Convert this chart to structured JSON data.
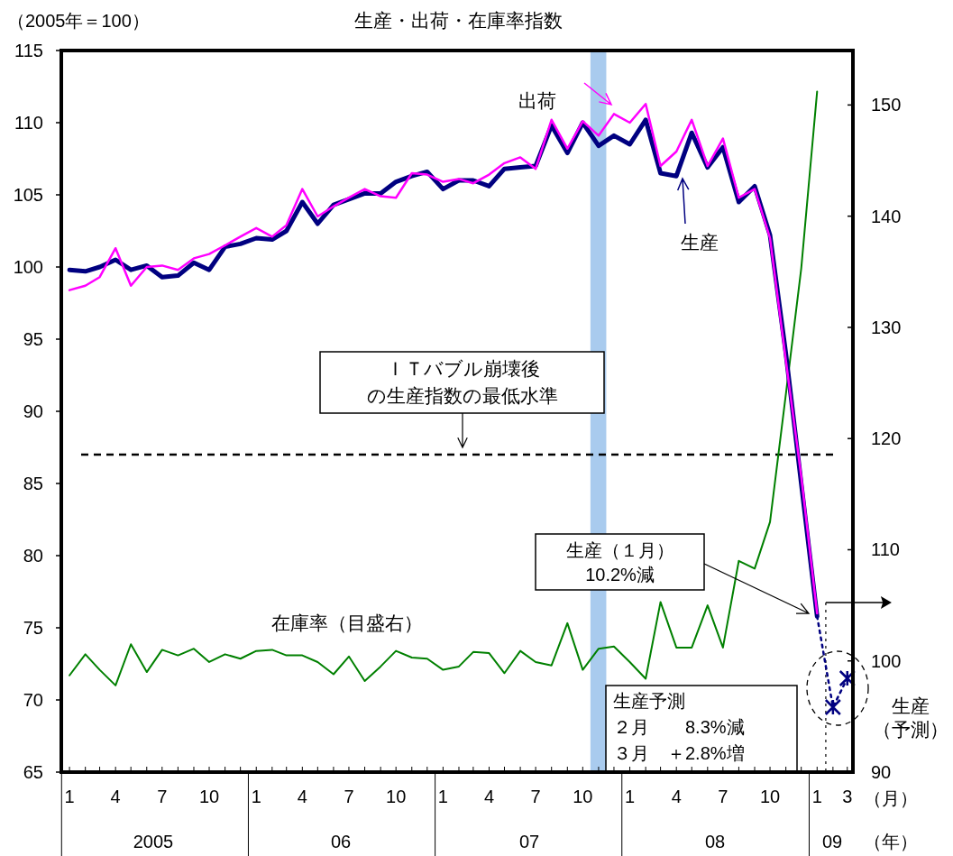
{
  "chart_data": {
    "type": "line",
    "title": "生産・出荷・在庫率指数",
    "ylabel": "（2005年＝100）",
    "xlabel": "（月）",
    "x": [
      "2005-01",
      "2005-02",
      "2005-03",
      "2005-04",
      "2005-05",
      "2005-06",
      "2005-07",
      "2005-08",
      "2005-09",
      "2005-10",
      "2005-11",
      "2005-12",
      "2006-01",
      "2006-02",
      "2006-03",
      "2006-04",
      "2006-05",
      "2006-06",
      "2006-07",
      "2006-08",
      "2006-09",
      "2006-10",
      "2006-11",
      "2006-12",
      "2007-01",
      "2007-02",
      "2007-03",
      "2007-04",
      "2007-05",
      "2007-06",
      "2007-07",
      "2007-08",
      "2007-09",
      "2007-10",
      "2007-11",
      "2007-12",
      "2008-01",
      "2008-02",
      "2008-03",
      "2008-04",
      "2008-05",
      "2008-06",
      "2008-07",
      "2008-08",
      "2008-09",
      "2008-10",
      "2008-11",
      "2008-12",
      "2009-01"
    ],
    "xlim": [
      "2004-12-16",
      "2009-03-12"
    ],
    "xticks": [
      {
        "value": "2005-01",
        "label": "1"
      },
      {
        "value": "2005-02",
        "label": null
      },
      {
        "value": "2005-03",
        "label": null
      },
      {
        "value": "2005-04",
        "label": "4"
      },
      {
        "value": "2005-05",
        "label": null
      },
      {
        "value": "2005-06",
        "label": null
      },
      {
        "value": "2005-07",
        "label": "7"
      },
      {
        "value": "2005-08",
        "label": null
      },
      {
        "value": "2005-09",
        "label": null
      },
      {
        "value": "2005-10",
        "label": "10"
      },
      {
        "value": "2005-11",
        "label": null
      },
      {
        "value": "2005-12",
        "label": null
      },
      {
        "value": "2006-01",
        "label": "1"
      },
      {
        "value": "2006-02",
        "label": null
      },
      {
        "value": "2006-03",
        "label": null
      },
      {
        "value": "2006-04",
        "label": "4"
      },
      {
        "value": "2006-05",
        "label": null
      },
      {
        "value": "2006-06",
        "label": null
      },
      {
        "value": "2006-07",
        "label": "7"
      },
      {
        "value": "2006-08",
        "label": null
      },
      {
        "value": "2006-09",
        "label": null
      },
      {
        "value": "2006-10",
        "label": "10"
      },
      {
        "value": "2006-11",
        "label": null
      },
      {
        "value": "2006-12",
        "label": null
      },
      {
        "value": "2007-01",
        "label": "1"
      },
      {
        "value": "2007-02",
        "label": null
      },
      {
        "value": "2007-03",
        "label": null
      },
      {
        "value": "2007-04",
        "label": "4"
      },
      {
        "value": "2007-05",
        "label": null
      },
      {
        "value": "2007-06",
        "label": null
      },
      {
        "value": "2007-07",
        "label": "7"
      },
      {
        "value": "2007-08",
        "label": null
      },
      {
        "value": "2007-09",
        "label": null
      },
      {
        "value": "2007-10",
        "label": "10"
      },
      {
        "value": "2007-11",
        "label": null
      },
      {
        "value": "2007-12",
        "label": null
      },
      {
        "value": "2008-01",
        "label": "1"
      },
      {
        "value": "2008-02",
        "label": null
      },
      {
        "value": "2008-03",
        "label": null
      },
      {
        "value": "2008-04",
        "label": "4"
      },
      {
        "value": "2008-05",
        "label": null
      },
      {
        "value": "2008-06",
        "label": null
      },
      {
        "value": "2008-07",
        "label": "7"
      },
      {
        "value": "2008-08",
        "label": null
      },
      {
        "value": "2008-09",
        "label": null
      },
      {
        "value": "2008-10",
        "label": "10"
      },
      {
        "value": "2008-11",
        "label": null
      },
      {
        "value": "2008-12",
        "label": null
      },
      {
        "value": "2009-01",
        "label": "1"
      },
      {
        "value": "2009-02",
        "label": null
      },
      {
        "value": "2009-03",
        "label": "3"
      }
    ],
    "ylim": [
      65,
      115
    ],
    "yticks": [
      65,
      70,
      75,
      80,
      85,
      90,
      95,
      100,
      105,
      110,
      115
    ],
    "y2lim": [
      90,
      154.9
    ],
    "y2ticks": [
      90,
      100,
      110,
      120,
      130,
      140,
      150
    ],
    "series": [
      {
        "name": "在庫率（目盛右）",
        "color": "#008000",
        "axis": "y2",
        "values": [
          98.7,
          100.6,
          99.2,
          97.8,
          101.5,
          99.0,
          101.0,
          100.5,
          101.1,
          99.9,
          100.6,
          100.2,
          100.9,
          101.0,
          100.5,
          100.5,
          99.9,
          98.8,
          100.4,
          98.2,
          99.5,
          100.9,
          100.3,
          100.2,
          99.2,
          99.5,
          100.8,
          100.7,
          98.9,
          100.9,
          99.9,
          99.6,
          103.4,
          99.2,
          101.1,
          101.3,
          99.9,
          98.4,
          105.3,
          101.2,
          101.2,
          105.0,
          101.2,
          109.0,
          108.3,
          112.5,
          124.0,
          135.3,
          151.2
        ]
      },
      {
        "name": "生産",
        "color": "#000080",
        "values": [
          99.8,
          99.7,
          100.0,
          100.5,
          99.8,
          100.1,
          99.3,
          99.4,
          100.3,
          99.8,
          101.4,
          101.6,
          102.0,
          101.9,
          102.5,
          104.5,
          103.0,
          104.3,
          104.7,
          105.1,
          105.1,
          105.9,
          106.3,
          106.6,
          105.4,
          106.0,
          106.0,
          105.6,
          106.8,
          106.9,
          107.0,
          109.8,
          107.9,
          110.0,
          108.4,
          109.1,
          108.5,
          110.2,
          106.5,
          106.3,
          109.3,
          106.9,
          108.3,
          104.5,
          105.6,
          102.2,
          94.0,
          85.0,
          75.8
        ]
      },
      {
        "name": "出荷",
        "color": "#ff00ff",
        "values": [
          98.4,
          98.7,
          99.3,
          101.3,
          98.7,
          100.0,
          100.1,
          99.8,
          100.6,
          100.9,
          101.5,
          102.1,
          102.7,
          102.1,
          102.9,
          105.4,
          103.5,
          104.2,
          104.8,
          105.4,
          104.9,
          104.8,
          106.5,
          106.4,
          105.9,
          106.1,
          105.8,
          106.4,
          107.2,
          107.6,
          106.8,
          110.2,
          108.2,
          110.1,
          109.1,
          110.6,
          110.0,
          111.3,
          107.0,
          108.0,
          110.2,
          107.0,
          108.9,
          104.8,
          105.4,
          102.0,
          93.5,
          85.5,
          76.0
        ]
      },
      {
        "color": "#000080",
        "line_style": "dotted",
        "x": [
          "2009-01",
          "2009-02",
          "2009-03"
        ],
        "values": [
          75.8,
          69.5,
          71.5
        ]
      },
      {
        "name": "生産（予測）",
        "type": "scatter",
        "marker": "cross",
        "color": "#000080",
        "x": [
          "2009-02",
          "2009-03"
        ],
        "values": [
          69.5,
          71.5
        ]
      }
    ],
    "bands": [
      {
        "axis": "x",
        "from": "2007-10-16",
        "to": "2007-11-16",
        "color": "#a9cbee"
      }
    ],
    "ref_lines": [
      {
        "axis": "y",
        "value": 87,
        "label": "ＩＴバブル崩壊後の生産指数の最低水準",
        "line_style": "dashed",
        "color": "#000000"
      },
      {
        "axis": "x",
        "value": "2009-01-18",
        "line_style": "dotted",
        "color": "#000000"
      }
    ],
    "annotations": [
      "生産（１月）10.2%減",
      "2005",
      "06",
      "07",
      "08",
      "09",
      "（年）",
      "生産予測",
      "２月　　8.3%減",
      "３月　＋2.8%増"
    ]
  }
}
